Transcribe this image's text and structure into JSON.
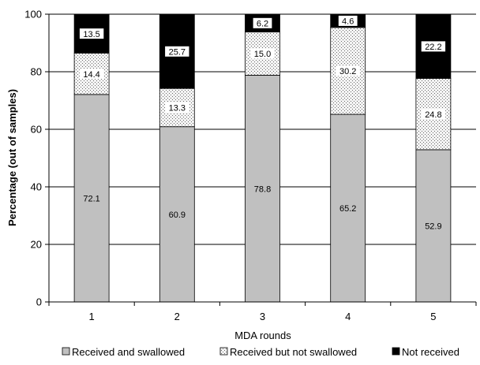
{
  "chart_data": {
    "type": "bar",
    "stacked": true,
    "title": "",
    "xlabel": "MDA rounds",
    "ylabel": "Percentage (out of samples)",
    "categories": [
      "1",
      "2",
      "3",
      "4",
      "5"
    ],
    "ylim": [
      0,
      100
    ],
    "yticks": [
      0,
      20,
      40,
      60,
      80,
      100
    ],
    "grid": true,
    "legend_position": "bottom",
    "series": [
      {
        "name": "Received and swallowed",
        "values": [
          72.1,
          60.9,
          78.8,
          65.2,
          52.9
        ],
        "labels": [
          "72.1",
          "60.9",
          "78.8",
          "65.2",
          "52.9"
        ],
        "color": "#c0c0c0",
        "pattern": "solid"
      },
      {
        "name": "Received but not swallowed",
        "values": [
          14.4,
          13.3,
          15.0,
          30.2,
          24.8
        ],
        "labels": [
          "14.4",
          "13.3",
          "15.0",
          "30.2",
          "24.8"
        ],
        "color": "#f0f0f0",
        "pattern": "dotted"
      },
      {
        "name": "Not received",
        "values": [
          13.5,
          25.7,
          6.2,
          4.6,
          22.2
        ],
        "labels": [
          "13.5",
          "25.7",
          "6.2",
          "4.6",
          "22.2"
        ],
        "color": "#000000",
        "pattern": "solid"
      }
    ]
  }
}
